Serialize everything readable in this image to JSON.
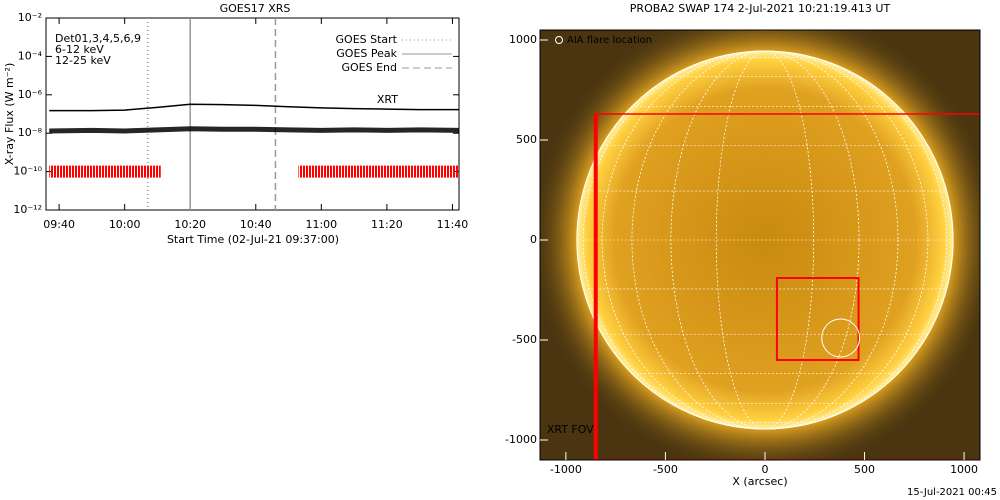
{
  "chart_data": [
    {
      "type": "line",
      "title": "GOES17 XRS",
      "xlabel": "Start Time (02-Jul-21 09:37:00)",
      "ylabel": "X-ray Flux (W m⁻²)",
      "log_y": true,
      "xlim": [
        "09:36",
        "11:42"
      ],
      "xticks": [
        "09:40",
        "10:00",
        "10:20",
        "10:40",
        "11:00",
        "11:20",
        "11:40"
      ],
      "ylim": [
        1e-12,
        0.01
      ],
      "yticks": [
        {
          "value": 1e-12,
          "label": "10⁻¹²"
        },
        {
          "value": 1e-10,
          "label": "10⁻¹⁰"
        },
        {
          "value": 1e-08,
          "label": "10⁻⁸"
        },
        {
          "value": 1e-06,
          "label": "10⁻⁶"
        },
        {
          "value": 0.0001,
          "label": "10⁻⁴"
        },
        {
          "value": 0.01,
          "label": "10⁻²"
        }
      ],
      "x": [
        "09:37",
        "09:50",
        "10:00",
        "10:10",
        "10:20",
        "10:30",
        "10:40",
        "10:50",
        "11:00",
        "11:10",
        "11:20",
        "11:30",
        "11:42"
      ],
      "series": [
        {
          "color": "#000000",
          "values": [
            1.5e-07,
            1.5e-07,
            1.6e-07,
            2.2e-07,
            3.2e-07,
            3.1e-07,
            2.8e-07,
            2.4e-07,
            2.1e-07,
            1.9e-07,
            1.8e-07,
            1.7e-07,
            1.7e-07
          ]
        },
        {
          "color": "#000000",
          "values": [
            1.3e-08,
            1.4e-08,
            1.3e-08,
            1.5e-08,
            1.7e-08,
            1.6e-08,
            1.6e-08,
            1.5e-08,
            1.4e-08,
            1.5e-08,
            1.4e-08,
            1.5e-08,
            1.4e-08
          ]
        }
      ],
      "xrt_label": "XRT",
      "xrt_color": "#ff0000",
      "xrt_level": 1e-10,
      "xrt_intervals": [
        [
          "09:37",
          "10:11"
        ],
        [
          "10:53",
          "11:42"
        ]
      ],
      "legend_texts": [
        {
          "text": "Det01,3,4,5,6,9",
          "color": "#000000"
        },
        {
          "text": "6-12 keV",
          "color": "#e000e0"
        },
        {
          "text": "12-25 keV",
          "color": "#00c000"
        }
      ],
      "markers": [
        {
          "name": "GOES Start",
          "x": "10:07",
          "dash": "1,3"
        },
        {
          "name": "GOES Peak",
          "x": "10:20",
          "dash": "none"
        },
        {
          "name": "GOES End",
          "x": "10:46",
          "dash": "7,4"
        }
      ]
    },
    {
      "type": "image",
      "title": "PROBA2 SWAP 174  2-Jul-2021 10:21:19.413 UT",
      "xlabel": "X (arcsec)",
      "xlim": [
        -1130,
        1080
      ],
      "ylim": [
        -1100,
        1050
      ],
      "xticks": [
        -1000,
        -500,
        0,
        500,
        1000
      ],
      "yticks": [
        -1000,
        -500,
        0,
        500,
        1000
      ],
      "sun_radius": 945,
      "regions": [
        {
          "label": "XRT FOV",
          "x": [
            -850,
            1100
          ],
          "y": [
            -1100,
            630
          ],
          "color": "#ff0000"
        },
        {
          "x": [
            60,
            470
          ],
          "y": [
            -600,
            -190
          ],
          "color": "#ff0000"
        }
      ],
      "flare": {
        "label": "AIA flare location",
        "x": 380,
        "y": -490,
        "r": 95
      },
      "footer": "15-Jul-2021 00:45"
    }
  ]
}
